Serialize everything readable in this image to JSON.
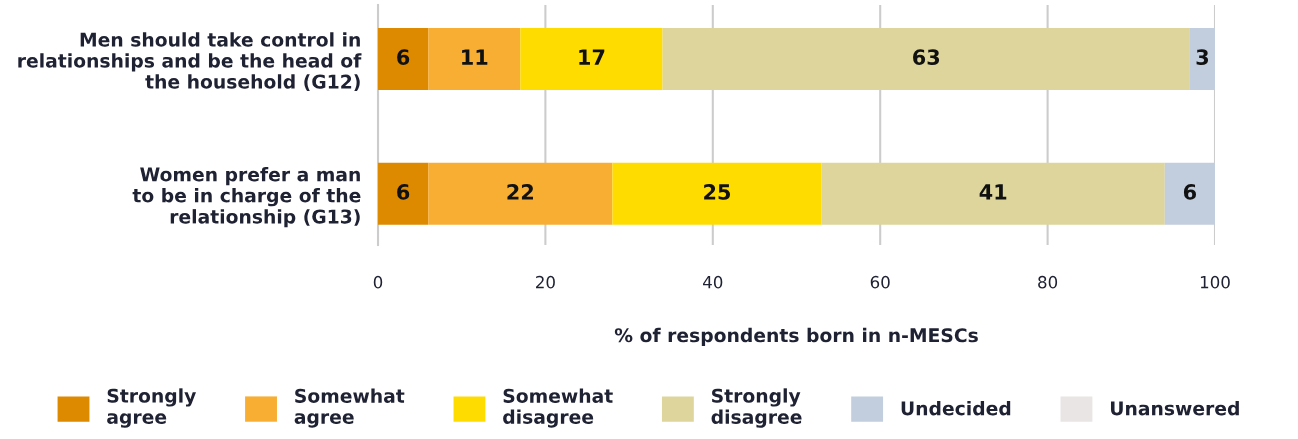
{
  "chart_data": {
    "type": "bar",
    "orientation": "horizontal",
    "stacked": true,
    "categories": [
      "Men should take control in\nrelationships and be the head of\nthe household (G12)",
      "Women prefer a man\nto be in charge of the\nrelationship (G13)"
    ],
    "series": [
      {
        "name": "Strongly\nagree",
        "color": "#dd8a00",
        "values": [
          6,
          6
        ]
      },
      {
        "name": "Somewhat\nagree",
        "color": "#f7ae33",
        "values": [
          11,
          22
        ]
      },
      {
        "name": "Somewhat\ndisagree",
        "color": "#ffdc00",
        "values": [
          17,
          25
        ]
      },
      {
        "name": "Strongly\ndisagree",
        "color": "#ddd59b",
        "values": [
          63,
          41
        ]
      },
      {
        "name": "Undecided",
        "color": "#c2cddd",
        "values": [
          3,
          6
        ]
      },
      {
        "name": "Unanswered",
        "color": "#e9e5e4",
        "values": [
          null,
          null
        ]
      }
    ],
    "xlabel": "% of respondents born in n-MESCs",
    "xlim": [
      0,
      100
    ],
    "xticks": [
      0,
      20,
      40,
      60,
      80,
      100
    ],
    "grid": "x",
    "legend": "bottom",
    "data_labels": true
  }
}
